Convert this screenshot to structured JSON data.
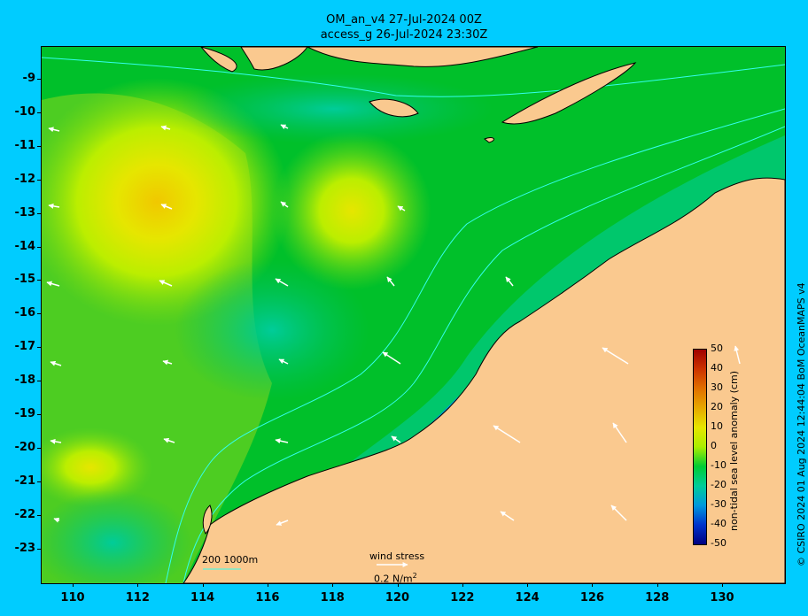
{
  "header": {
    "title_line1": "OM_an_v4  27-Jul-2024 00Z",
    "title_line2": "access_g 26-Jul-2024 23:30Z"
  },
  "credit": "© CSIRO 2024  01 Aug 2024 12:44:04 BoM OceanMAPS v4",
  "axes": {
    "x_ticks": [
      "110",
      "112",
      "114",
      "116",
      "118",
      "120",
      "122",
      "124",
      "126",
      "128",
      "130"
    ],
    "y_ticks": [
      "-9",
      "-10",
      "-11",
      "-12",
      "-13",
      "-14",
      "-15",
      "-16",
      "-17",
      "-18",
      "-19",
      "-20",
      "-21",
      "-22",
      "-23"
    ]
  },
  "colorbar": {
    "label": "non-tidal sea level anomaly (cm)",
    "ticks": [
      "50",
      "40",
      "30",
      "20",
      "10",
      "0",
      "-10",
      "-20",
      "-30",
      "-40",
      "-50"
    ],
    "colors": [
      "#a00000",
      "#cc3300",
      "#e07000",
      "#e6a800",
      "#e6e600",
      "#aaee00",
      "#00cc33",
      "#00cc99",
      "#0099dd",
      "#0033cc",
      "#000080"
    ]
  },
  "legend": {
    "isobaths": "200  1000m",
    "wind_stress_label": "wind stress",
    "wind_stress_scale": "0.2 N/m",
    "wind_stress_scale_sup": "2"
  },
  "colors": {
    "background": "#00ccff",
    "land": "#fac98f",
    "sea_base": "#00c02a",
    "contour": "#33ffee"
  }
}
